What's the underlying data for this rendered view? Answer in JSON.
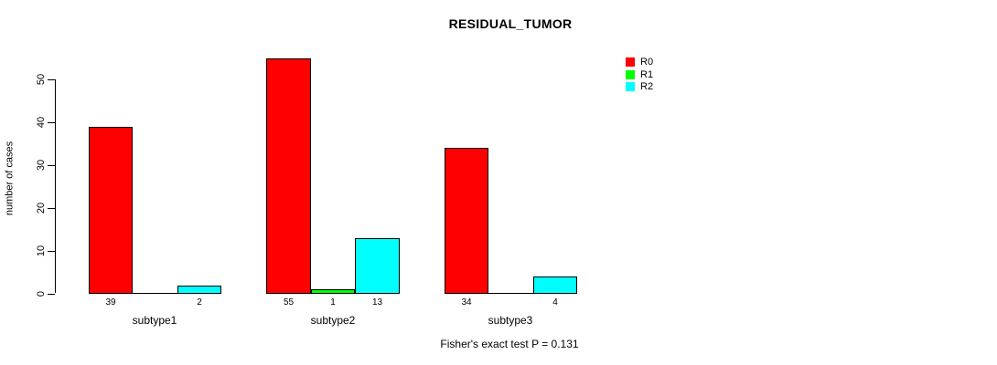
{
  "title": "RESIDUAL_TUMOR",
  "ylabel": "number of cases",
  "annotation": "Fisher's exact test P = 0.131",
  "legend": {
    "position": "top-right",
    "entries": [
      {
        "label": "R0",
        "color": "#ff0000"
      },
      {
        "label": "R1",
        "color": "#00ff00"
      },
      {
        "label": "R2",
        "color": "#00ffff"
      }
    ]
  },
  "chart_data": {
    "type": "bar",
    "grouped": true,
    "title": "RESIDUAL_TUMOR",
    "xlabel": "",
    "ylabel": "number of cases",
    "categories": [
      "subtype1",
      "subtype2",
      "subtype3"
    ],
    "series": [
      {
        "name": "R0",
        "color": "#ff0000",
        "values": [
          39,
          55,
          34
        ]
      },
      {
        "name": "R1",
        "color": "#00ff00",
        "values": [
          0,
          1,
          0
        ]
      },
      {
        "name": "R2",
        "color": "#00ffff",
        "values": [
          2,
          13,
          4
        ]
      }
    ],
    "bar_value_labels": [
      [
        "39",
        "",
        "2"
      ],
      [
        "55",
        "1",
        "13"
      ],
      [
        "34",
        "",
        "4"
      ]
    ],
    "yticks": [
      0,
      10,
      20,
      30,
      40,
      50
    ],
    "ylim": [
      0,
      55
    ],
    "grid": false,
    "bar_border_color": "#000000",
    "background_color": "#ffffff",
    "legend_position": "top-right",
    "annotation": "Fisher's exact test P = 0.131"
  }
}
